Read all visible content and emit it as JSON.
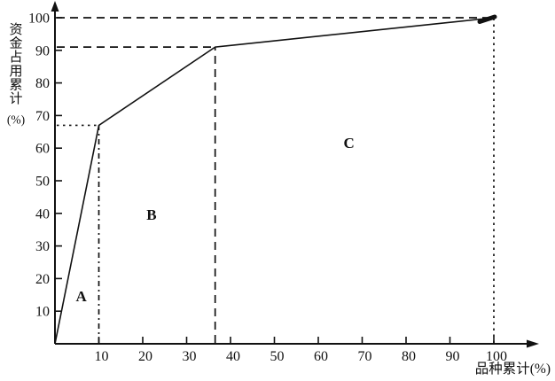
{
  "figure": {
    "background": "#ffffff",
    "ink": "#111111",
    "description": "ABC analysis cumulative curve (scanned textbook figure)"
  },
  "chart_data": {
    "type": "line",
    "title": "",
    "xlabel": "品种累计(%)",
    "ylabel": "资金占用累计(%)",
    "ylabel_stack": [
      "资",
      "金",
      "占",
      "用",
      "累",
      "计",
      "(%)"
    ],
    "xlim": [
      0,
      110
    ],
    "ylim": [
      0,
      106
    ],
    "grid": false,
    "legend": "none",
    "x_ticks": [
      10,
      20,
      30,
      40,
      50,
      60,
      70,
      80,
      90,
      100
    ],
    "y_ticks": [
      10,
      20,
      30,
      40,
      50,
      60,
      70,
      80,
      90,
      100
    ],
    "series": [
      {
        "name": "cumulative-capital-vs-cumulative-items",
        "points": [
          [
            0,
            0
          ],
          [
            10,
            67
          ],
          [
            36.5,
            91
          ],
          [
            100,
            100
          ]
        ],
        "end_marker": true
      }
    ],
    "guides": {
      "horizontal": [
        {
          "y": 100,
          "x_to": 100,
          "style": "dash"
        },
        {
          "y": 91,
          "x_to": 36.5,
          "style": "dash"
        },
        {
          "y": 67,
          "x_to": 10,
          "style": "dot"
        }
      ],
      "vertical": [
        {
          "x": 10,
          "y_to": 67,
          "style": "dashdot"
        },
        {
          "x": 36.5,
          "y_to": 91,
          "style": "dash"
        },
        {
          "x": 100,
          "y_to": 100,
          "style": "dot"
        }
      ]
    },
    "region_labels": [
      {
        "label": "A",
        "x": 6,
        "y": 13
      },
      {
        "label": "B",
        "x": 22,
        "y": 38
      },
      {
        "label": "C",
        "x": 67,
        "y": 60
      }
    ]
  }
}
